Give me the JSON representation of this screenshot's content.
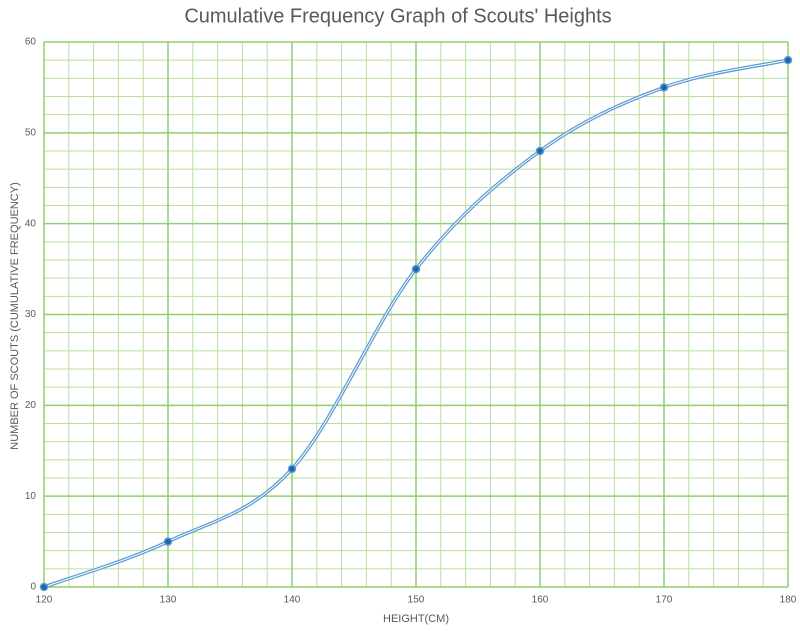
{
  "chart_data": {
    "type": "line",
    "title": "Cumulative Frequency Graph of Scouts' Heights",
    "x_label": "HEIGHT(CM)",
    "y_label": "NUMBER OF SCOUTS (CUMULATIVE FREQUENCY)",
    "x": [
      120,
      130,
      140,
      150,
      160,
      170,
      180
    ],
    "series": [
      {
        "color": "#5b9bd5",
        "values": [
          0,
          5,
          13,
          35,
          48,
          55,
          58
        ]
      }
    ],
    "xlim": [
      120,
      180
    ],
    "xticks": [
      120,
      130,
      140,
      150,
      160,
      170,
      180
    ],
    "ylim": [
      0,
      60
    ],
    "yticks": [
      0,
      10,
      20,
      30,
      40,
      50,
      60
    ],
    "grid": true,
    "smooth": true
  }
}
